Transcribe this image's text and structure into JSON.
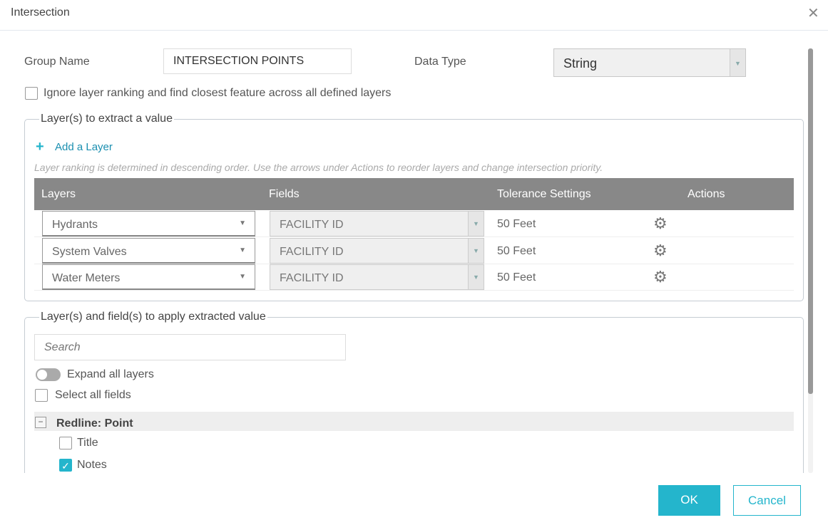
{
  "dialog": {
    "title": "Intersection",
    "close_icon": "close-icon"
  },
  "form": {
    "group_name_label": "Group Name",
    "group_name_value": "INTERSECTION POINTS",
    "data_type_label": "Data Type",
    "data_type_value": "String",
    "ignore_ranking_label": "Ignore layer ranking and find closest feature across all defined layers",
    "ignore_ranking_checked": false
  },
  "extract": {
    "legend": "Layer(s) to extract a value",
    "add_layer": "Add a Layer",
    "hint": "Layer ranking is determined in descending order. Use the arrows under Actions to reorder layers and change intersection priority.",
    "columns": [
      "Layers",
      "Fields",
      "Tolerance Settings",
      "Actions"
    ],
    "rows": [
      {
        "layer": "Hydrants",
        "field": "FACILITY ID",
        "tolerance": "50 Feet"
      },
      {
        "layer": "System Valves",
        "field": "FACILITY ID",
        "tolerance": "50 Feet"
      },
      {
        "layer": "Water Meters",
        "field": "FACILITY ID",
        "tolerance": "50 Feet"
      }
    ]
  },
  "apply": {
    "legend": "Layer(s) and field(s) to apply extracted value",
    "search_placeholder": "Search",
    "expand_all": "Expand all layers",
    "expand_all_on": false,
    "select_all": "Select all fields",
    "layer_group": "Redline: Point",
    "fields": [
      {
        "label": "Title",
        "checked": false
      },
      {
        "label": "Notes",
        "checked": true
      }
    ]
  },
  "footer": {
    "ok": "OK",
    "cancel": "Cancel"
  },
  "colors": {
    "accent": "#24b5cc",
    "table_header": "#888888"
  }
}
